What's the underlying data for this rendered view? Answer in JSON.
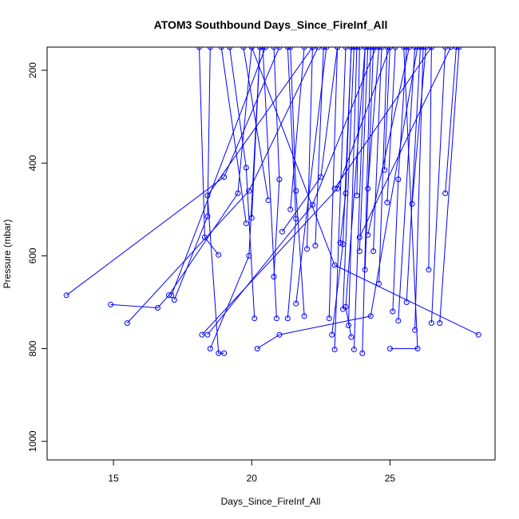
{
  "chart_data": {
    "type": "line",
    "title": "ATOM3 Southbound Days_Since_FireInf_All",
    "xlabel": "Days_Since_FireInf_All",
    "ylabel": "Pressure (mbar)",
    "xlim": [
      12.6,
      28.8
    ],
    "ylim": [
      1040,
      150
    ],
    "y_reversed": true,
    "xticks": [
      15,
      20,
      25
    ],
    "yticks": [
      200,
      400,
      600,
      800,
      1000
    ],
    "series_color": "#0000ff",
    "marker": "open-circle",
    "legend": "none",
    "grid": false,
    "series": [
      {
        "points": [
          [
            13.3,
            685
          ],
          [
            19.0,
            430
          ],
          [
            21.0,
            150
          ]
        ]
      },
      {
        "points": [
          [
            14.9,
            705
          ],
          [
            16.6,
            712
          ],
          [
            17.0,
            685
          ],
          [
            19.5,
            465
          ],
          [
            20.0,
            150
          ]
        ]
      },
      {
        "points": [
          [
            15.5,
            745
          ],
          [
            19.9,
            460
          ],
          [
            22.4,
            150
          ]
        ]
      },
      {
        "points": [
          [
            17.1,
            685
          ],
          [
            20.5,
            150
          ]
        ]
      },
      {
        "points": [
          [
            17.2,
            695
          ],
          [
            18.4,
            515
          ],
          [
            18.5,
            150
          ]
        ]
      },
      {
        "points": [
          [
            18.2,
            770
          ],
          [
            23.1,
            455
          ],
          [
            25.0,
            150
          ]
        ]
      },
      {
        "points": [
          [
            18.4,
            770
          ],
          [
            22.2,
            490
          ],
          [
            24.5,
            150
          ]
        ]
      },
      {
        "points": [
          [
            18.5,
            800
          ],
          [
            19.9,
            600
          ],
          [
            20.3,
            150
          ]
        ]
      },
      {
        "points": [
          [
            18.8,
            598
          ],
          [
            18.3,
            560
          ],
          [
            18.1,
            150
          ]
        ]
      },
      {
        "points": [
          [
            19.0,
            810
          ],
          [
            18.8,
            810
          ],
          [
            18.4,
            470
          ],
          [
            22.2,
            150
          ]
        ]
      },
      {
        "points": [
          [
            19.8,
            530
          ],
          [
            18.9,
            150
          ]
        ]
      },
      {
        "points": [
          [
            20.1,
            735
          ],
          [
            19.8,
            410
          ],
          [
            19.2,
            150
          ]
        ]
      },
      {
        "points": [
          [
            20.2,
            800
          ],
          [
            21.0,
            770
          ],
          [
            24.3,
            730
          ],
          [
            26.0,
            150
          ]
        ]
      },
      {
        "points": [
          [
            20.0,
            518
          ],
          [
            20.3,
            150
          ]
        ]
      },
      {
        "points": [
          [
            20.6,
            480
          ],
          [
            19.7,
            150
          ]
        ]
      },
      {
        "points": [
          [
            20.9,
            735
          ],
          [
            20.4,
            150
          ]
        ]
      },
      {
        "points": [
          [
            20.8,
            645
          ],
          [
            21.0,
            435
          ],
          [
            20.8,
            150
          ]
        ]
      },
      {
        "points": [
          [
            21.3,
            735
          ],
          [
            21.6,
            520
          ],
          [
            21.3,
            150
          ]
        ]
      },
      {
        "points": [
          [
            21.1,
            548
          ],
          [
            22.5,
            430
          ],
          [
            23.1,
            150
          ]
        ]
      },
      {
        "points": [
          [
            21.4,
            500
          ],
          [
            21.9,
            150
          ]
        ]
      },
      {
        "points": [
          [
            21.6,
            703
          ],
          [
            22.7,
            150
          ]
        ]
      },
      {
        "points": [
          [
            21.9,
            730
          ],
          [
            21.6,
            460
          ],
          [
            21.4,
            150
          ]
        ]
      },
      {
        "points": [
          [
            22.0,
            585
          ],
          [
            22.2,
            150
          ]
        ]
      },
      {
        "points": [
          [
            22.3,
            578
          ],
          [
            22.6,
            150
          ]
        ]
      },
      {
        "points": [
          [
            22.8,
            735
          ],
          [
            23.1,
            150
          ]
        ]
      },
      {
        "points": [
          [
            22.9,
            770
          ],
          [
            23.3,
            575
          ],
          [
            23.6,
            150
          ]
        ]
      },
      {
        "points": [
          [
            23.0,
            802
          ],
          [
            23.4,
            150
          ]
        ]
      },
      {
        "points": [
          [
            23.2,
            572
          ],
          [
            23.4,
            465
          ],
          [
            23.6,
            150
          ]
        ]
      },
      {
        "points": [
          [
            23.3,
            715
          ],
          [
            23.7,
            150
          ]
        ]
      },
      {
        "points": [
          [
            23.5,
            750
          ],
          [
            23.8,
            150
          ]
        ]
      },
      {
        "points": [
          [
            23.6,
            775
          ],
          [
            23.4,
            710
          ],
          [
            24.1,
            150
          ]
        ]
      },
      {
        "points": [
          [
            23.7,
            802
          ],
          [
            24.1,
            150
          ]
        ]
      },
      {
        "points": [
          [
            23.8,
            470
          ],
          [
            23.9,
            150
          ]
        ]
      },
      {
        "points": [
          [
            23.9,
            590
          ],
          [
            24.2,
            150
          ]
        ]
      },
      {
        "points": [
          [
            24.0,
            810
          ],
          [
            24.3,
            150
          ]
        ]
      },
      {
        "points": [
          [
            24.1,
            630
          ],
          [
            24.4,
            150
          ]
        ]
      },
      {
        "points": [
          [
            24.2,
            455
          ],
          [
            24.6,
            150
          ]
        ]
      },
      {
        "points": [
          [
            24.4,
            590
          ],
          [
            24.7,
            150
          ]
        ]
      },
      {
        "points": [
          [
            24.6,
            660
          ],
          [
            24.9,
            150
          ]
        ]
      },
      {
        "points": [
          [
            24.8,
            415
          ],
          [
            25.0,
            150
          ]
        ]
      },
      {
        "points": [
          [
            24.9,
            485
          ],
          [
            25.2,
            150
          ]
        ]
      },
      {
        "points": [
          [
            25.0,
            800
          ],
          [
            26.0,
            800
          ],
          [
            25.5,
            150
          ]
        ]
      },
      {
        "points": [
          [
            25.1,
            720
          ],
          [
            25.3,
            435
          ],
          [
            25.6,
            150
          ]
        ]
      },
      {
        "points": [
          [
            25.3,
            740
          ],
          [
            25.9,
            150
          ]
        ]
      },
      {
        "points": [
          [
            25.6,
            700
          ],
          [
            26.1,
            150
          ]
        ]
      },
      {
        "points": [
          [
            25.9,
            760
          ],
          [
            26.2,
            150
          ]
        ]
      },
      {
        "points": [
          [
            25.8,
            488
          ],
          [
            26.3,
            150
          ]
        ]
      },
      {
        "points": [
          [
            26.4,
            630
          ],
          [
            26.5,
            150
          ]
        ]
      },
      {
        "points": [
          [
            26.5,
            745
          ],
          [
            27.0,
            150
          ]
        ]
      },
      {
        "points": [
          [
            26.8,
            745
          ],
          [
            27.5,
            150
          ]
        ]
      },
      {
        "points": [
          [
            27.0,
            465
          ],
          [
            27.4,
            150
          ]
        ]
      },
      {
        "points": [
          [
            28.2,
            770
          ],
          [
            23.0,
            620
          ],
          [
            20.0,
            150
          ]
        ]
      },
      {
        "points": [
          [
            24.2,
            555
          ],
          [
            25.7,
            150
          ]
        ]
      },
      {
        "points": [
          [
            23.9,
            560
          ],
          [
            27.2,
            150
          ]
        ]
      },
      {
        "points": [
          [
            23.0,
            455
          ],
          [
            26.5,
            150
          ]
        ]
      }
    ]
  }
}
